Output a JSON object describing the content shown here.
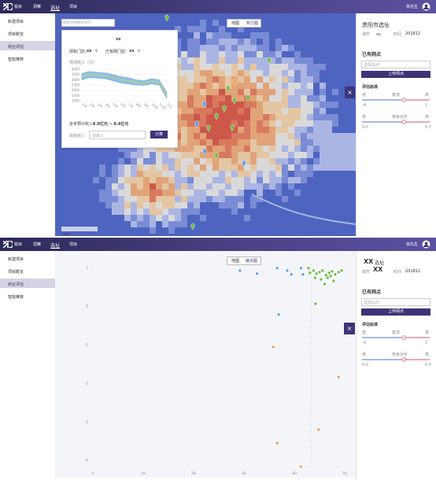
{
  "header": {
    "logo": "锐目",
    "nav": [
      "洞察",
      "选址",
      "项目"
    ],
    "user": "林先生"
  },
  "sidebar": {
    "items": [
      "新建项目",
      "项目概览",
      "商业评估",
      "智能推荐"
    ]
  },
  "map_view": {
    "search_placeholder": "搜索你想要的地点",
    "toggle": [
      "地图",
      "热力图"
    ],
    "scale": "2km",
    "popup": {
      "title": "xx",
      "existing_stores": "现有门店：",
      "existing_count": "xx",
      "unit": "个",
      "other_stores": "已有网门店：",
      "other_count": "xx",
      "chart": {
        "type": "area-range",
        "title": "预测收入（元）",
        "categories": [
          "1月",
          "2月",
          "3月",
          "4月",
          "5月",
          "6月",
          "7月",
          "8月",
          "9月",
          "10月",
          "11月",
          "12月"
        ],
        "upper": [
          3600,
          3800,
          3700,
          3650,
          3500,
          3300,
          3200,
          3000,
          2900,
          3100,
          3000,
          1800
        ],
        "lower": [
          3000,
          3200,
          3150,
          3100,
          2900,
          2700,
          2600,
          2500,
          2450,
          2600,
          2500,
          1200
        ],
        "ylim": [
          1000,
          4000
        ],
        "yticks": [
          4000,
          3500,
          3000,
          2500,
          2000,
          1500,
          1000
        ],
        "color": "#8fc0e8"
      },
      "annual_label": "全年预计收入：",
      "annual_value": "6.0亿元 ~ 6.4亿元",
      "target_label": "目标收入",
      "target_placeholder": "请输入",
      "button": "计算"
    }
  },
  "panel_top": {
    "title": "贵阳市选址",
    "city_label": "城市",
    "city": "xx",
    "time_label": "时间",
    "time": "201812",
    "stores": "已有网点",
    "select": "选择站点",
    "upload": "上传网点",
    "criteria": "评估标准",
    "slider1": {
      "low": "低",
      "high": "高",
      "name": "客流",
      "min": "-4",
      "max": "1"
    },
    "slider2": {
      "low": "低",
      "high": "高",
      "name": "竞争对手",
      "min": "0.0",
      "max": "0.7"
    }
  },
  "scatter_view": {
    "toggle": [
      "地图",
      "散点图"
    ],
    "chart_data": {
      "type": "scatter",
      "xlim": [
        0,
        50
      ],
      "ylim": [
        -4.2,
        1.1
      ],
      "xticks": [
        0,
        10,
        20,
        30,
        40,
        50
      ],
      "yticks": [
        1,
        0,
        -1,
        -2,
        -3,
        -4
      ],
      "series": [
        {
          "color": "#5b9ef0",
          "x": [
            29.2,
            32.6,
            36.6,
            38.6,
            39.4,
            36.9,
            41.3,
            41.7
          ],
          "y": [
            0.92,
            0.84,
            0.98,
            0.92,
            0.82,
            -0.22,
            0.98,
            0.82
          ]
        },
        {
          "color": "#6cbf3a",
          "x": [
            43.1,
            43.8,
            44.4,
            45.0,
            45.6,
            46.3,
            46.9,
            47.5,
            48.1,
            48.8,
            49.4,
            44.1,
            45.3,
            46.6,
            47.8,
            46.0,
            47.2,
            42.8,
            44.2
          ],
          "y": [
            0.86,
            0.92,
            0.84,
            0.88,
            0.92,
            0.8,
            0.86,
            0.9,
            0.82,
            0.88,
            0.92,
            0.73,
            0.69,
            0.73,
            0.65,
            0.57,
            0.78,
            0.98,
            0.06
          ]
        },
        {
          "color": "#f0a04a",
          "x": [
            35.8,
            48.8,
            44.8,
            36.6,
            41.3
          ],
          "y": [
            -1.06,
            -1.84,
            -3.2,
            -3.55,
            -4.16
          ]
        }
      ]
    }
  },
  "panel_bottom": {
    "title_code": "XX",
    "title": "选址",
    "city_label": "城市",
    "city": "XX",
    "time_label": "时间",
    "time": "201812",
    "stores": "已有网点",
    "select": "选择站点",
    "upload": "上传网点",
    "criteria": "评估标准",
    "slider1": {
      "low": "低",
      "high": "高",
      "name": "客流",
      "min": "-4",
      "max": "1"
    },
    "slider2": {
      "low": "低",
      "high": "高",
      "name": "竞争对手",
      "min": "0.0",
      "max": "0.7"
    }
  }
}
